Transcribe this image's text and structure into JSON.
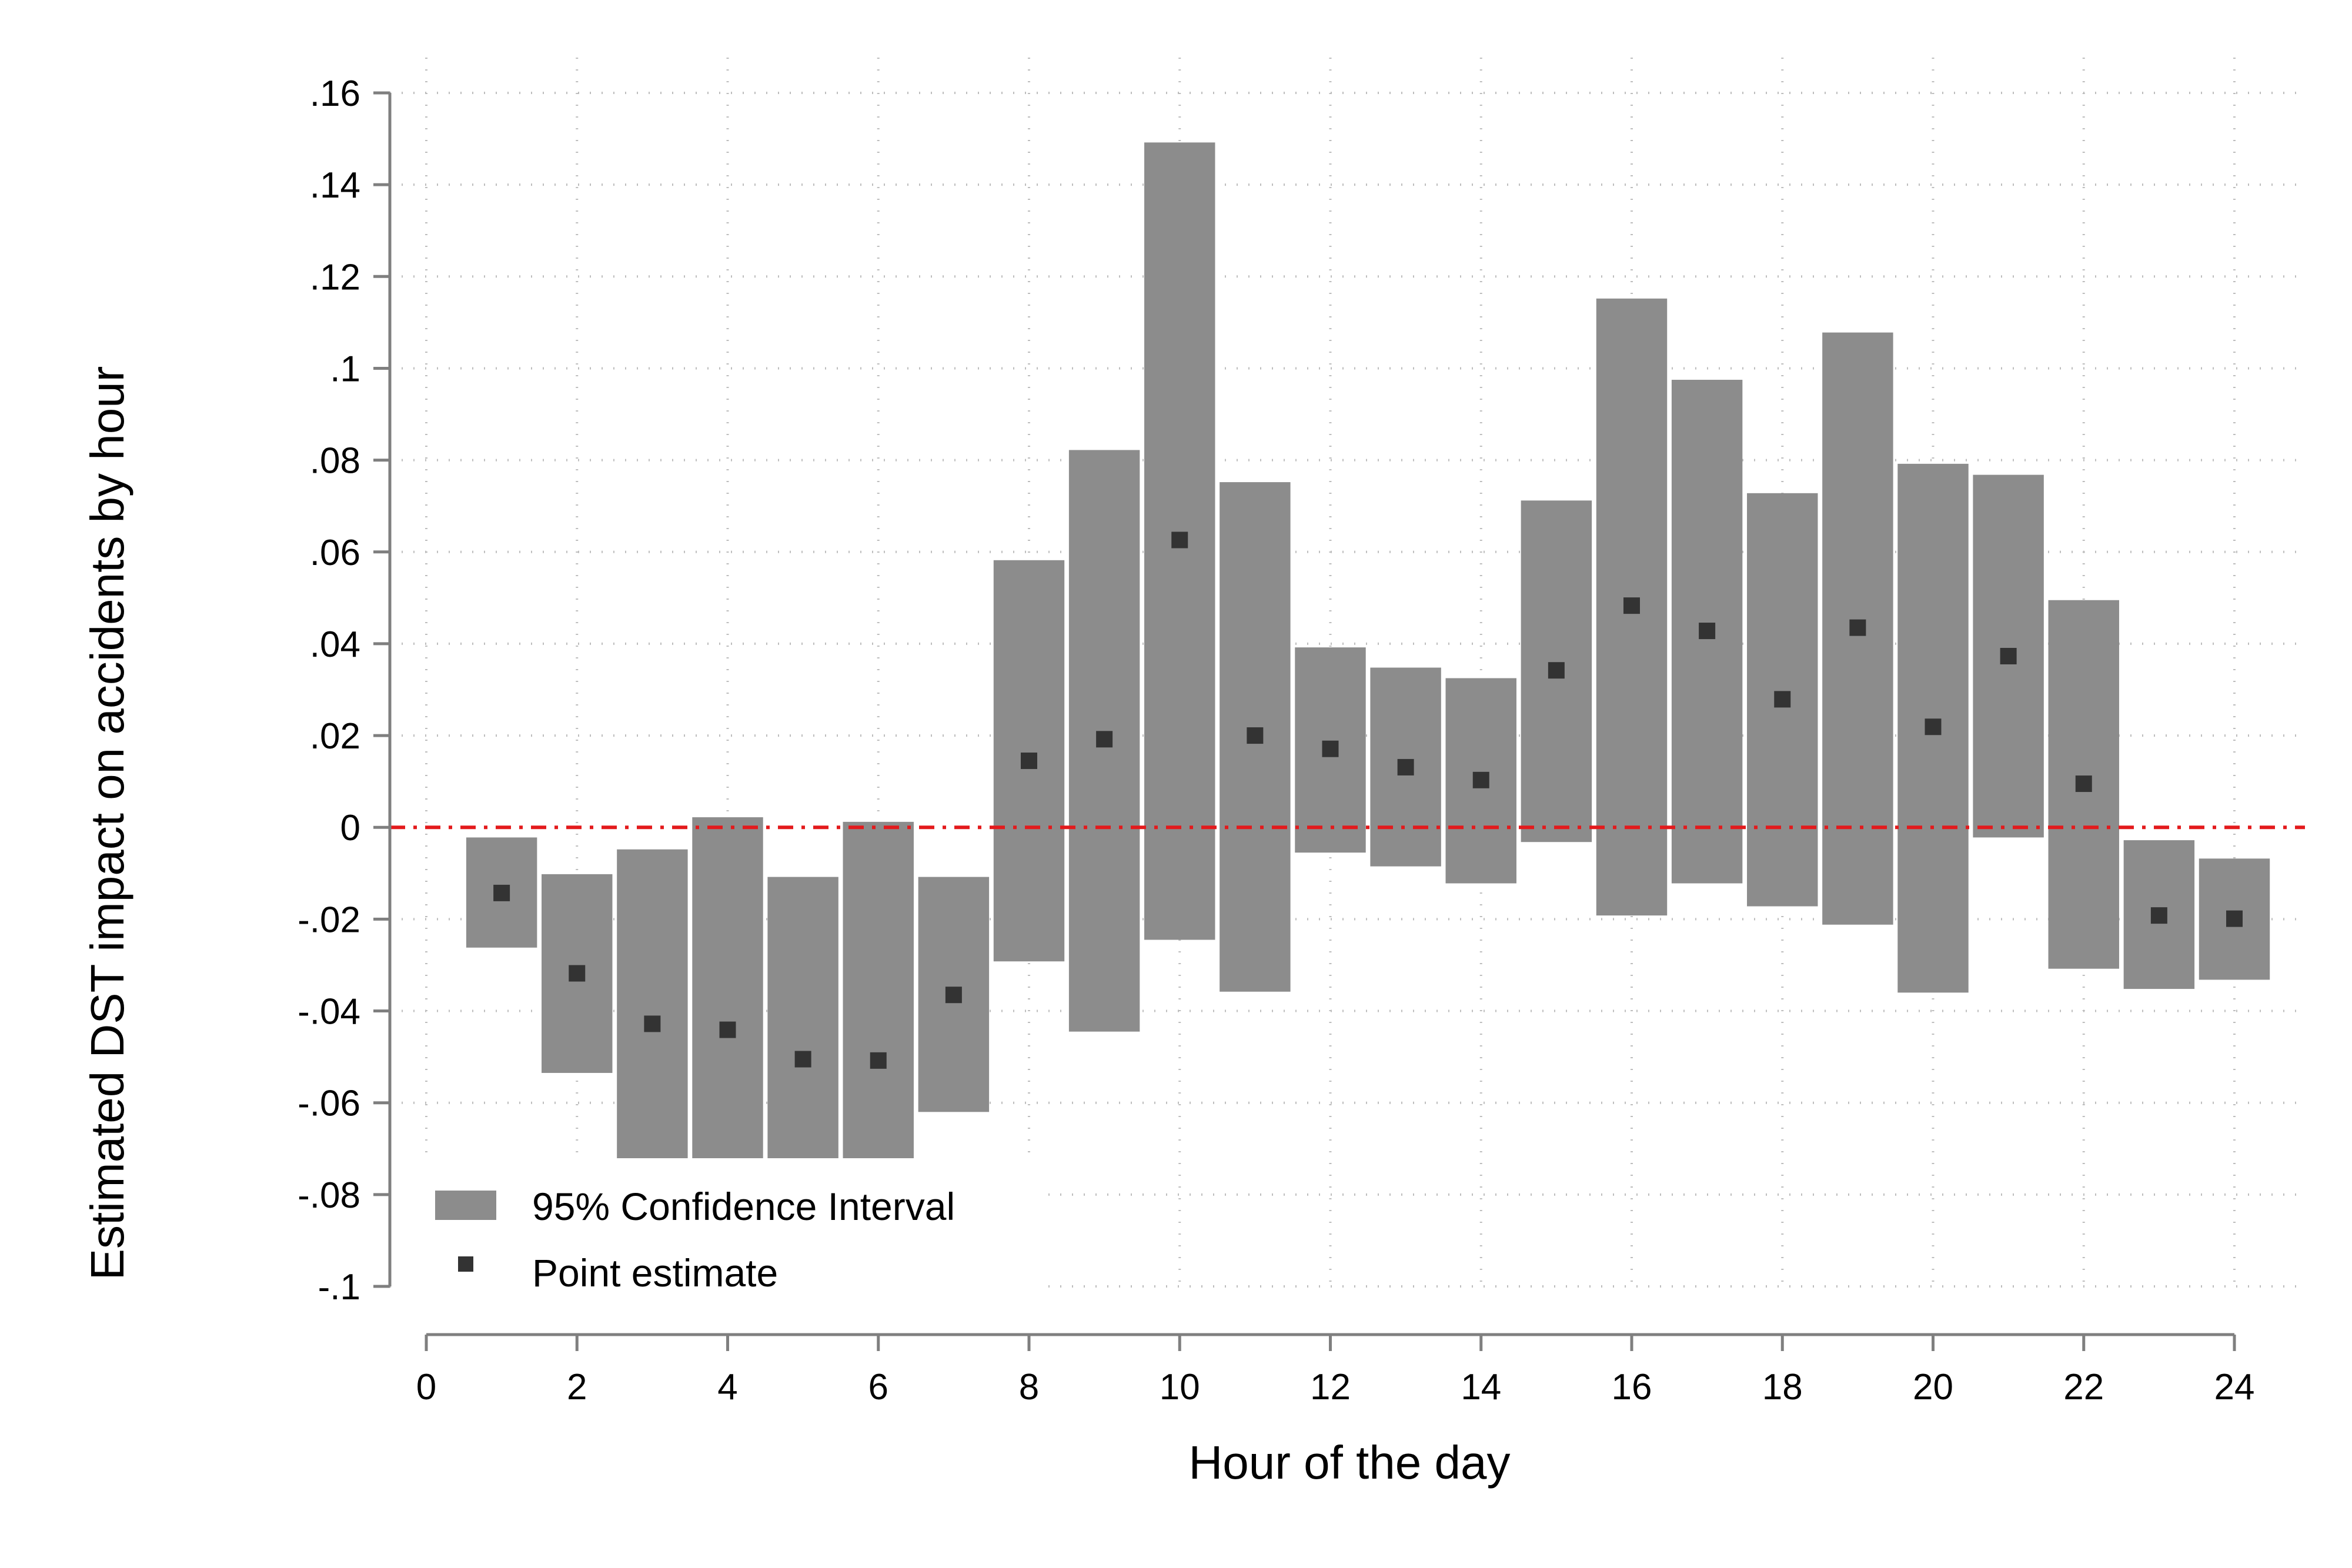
{
  "chart_data": {
    "type": "bar",
    "title": "",
    "xlabel": "Hour of the day",
    "ylabel": "Estimated DST impact on accidents by hour",
    "xlim": [
      0,
      24
    ],
    "ylim": [
      -0.1,
      0.16
    ],
    "x_ticks": [
      0,
      2,
      4,
      6,
      8,
      10,
      12,
      14,
      16,
      18,
      20,
      22,
      24
    ],
    "x_tick_labels": [
      "0",
      "2",
      "4",
      "6",
      "8",
      "10",
      "12",
      "14",
      "16",
      "18",
      "20",
      "22",
      "24"
    ],
    "y_ticks": [
      0.16,
      0.14,
      0.12,
      0.1,
      0.08,
      0.06,
      0.04,
      0.02,
      0,
      -0.02,
      -0.04,
      -0.06,
      -0.08,
      -0.1
    ],
    "y_tick_labels": [
      ".16",
      ".14",
      ".12",
      ".1",
      ".08",
      ".06",
      ".04",
      ".02",
      "0",
      "-.02",
      "-.04",
      "-.06",
      "-.08",
      "-.1"
    ],
    "grid": true,
    "legend_position": "bottom-left",
    "reference_line": {
      "y": 0,
      "style": "dashed",
      "color": "#e31a1c"
    },
    "series": [
      {
        "name": "95% Confidence Interval",
        "kind": "range-bar",
        "color": "#8c8c8c",
        "hours": [
          1,
          2,
          3,
          4,
          5,
          6,
          7,
          8,
          9,
          10,
          11,
          12,
          13,
          14,
          15,
          16,
          17,
          18,
          19,
          20,
          21,
          22,
          23,
          24
        ],
        "lower": [
          -0.0262,
          -0.0535,
          -0.0725,
          -0.0725,
          -0.0725,
          -0.0725,
          -0.062,
          -0.0292,
          -0.0445,
          -0.0245,
          -0.0358,
          -0.0055,
          -0.0085,
          -0.0122,
          -0.0032,
          -0.0192,
          -0.0122,
          -0.0172,
          -0.0212,
          -0.036,
          -0.0022,
          -0.0308,
          -0.0352,
          -0.0332
        ],
        "upper": [
          -0.0022,
          -0.0102,
          -0.0048,
          0.0022,
          -0.0108,
          0.0012,
          -0.0108,
          0.0582,
          0.0822,
          0.1492,
          0.0752,
          0.0392,
          0.0348,
          0.0325,
          0.0712,
          0.1152,
          0.0975,
          0.0728,
          0.1078,
          0.0792,
          0.0768,
          0.0495,
          -0.0028,
          -0.0068
        ]
      },
      {
        "name": "Point estimate",
        "kind": "scatter",
        "color": "#333333",
        "hours": [
          1,
          2,
          3,
          4,
          5,
          6,
          7,
          8,
          9,
          10,
          11,
          12,
          13,
          14,
          15,
          16,
          17,
          18,
          19,
          20,
          21,
          22,
          23,
          24
        ],
        "values": [
          -0.0143,
          -0.0318,
          -0.0428,
          -0.0441,
          -0.0505,
          -0.0508,
          -0.0365,
          0.0145,
          0.0192,
          0.0626,
          0.02,
          0.0171,
          0.0131,
          0.0103,
          0.0342,
          0.0483,
          0.0428,
          0.0279,
          0.0435,
          0.0219,
          0.0373,
          0.0095,
          -0.0192,
          -0.0199
        ]
      }
    ],
    "legend": [
      {
        "label": "95% Confidence Interval",
        "marker": "box"
      },
      {
        "label": "Point estimate",
        "marker": "square"
      }
    ]
  }
}
